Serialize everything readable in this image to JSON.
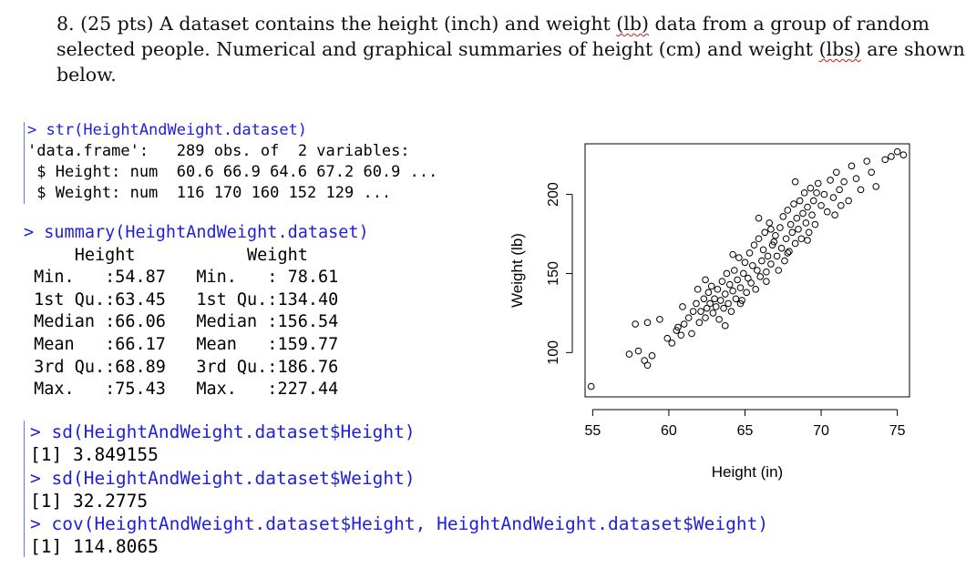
{
  "question": {
    "line1": "8.  (25 pts) A dataset contains the height (inch) and weight ",
    "line1_w1": "(lb)",
    "line1_tail": " data from a group of random",
    "line2": "selected people. Numerical and graphical summaries of height (cm) and weight ",
    "line2_w": "(lbs)",
    "line2_tail": " are shown",
    "line3": "below."
  },
  "console1": {
    "cmd": "> str(HeightAndWeight.dataset)",
    "line1": "'data.frame':\t289 obs. of  2 variables:",
    "line2": " $ Height: num  60.6 66.9 64.6 67.2 60.9 ...",
    "line3": " $ Weight: num  116 170 160 152 129 ..."
  },
  "console2": {
    "cmd": "> summary(HeightAndWeight.dataset)",
    "rows": [
      "     Height           Weight     ",
      " Min.   :54.87   Min.   : 78.61  ",
      " 1st Qu.:63.45   1st Qu.:134.40  ",
      " Median :66.06   Median :156.54  ",
      " Mean   :66.17   Mean   :159.77  ",
      " 3rd Qu.:68.89   3rd Qu.:186.76  ",
      " Max.   :75.43   Max.   :227.44  "
    ]
  },
  "console3": {
    "cmd1": "> sd(HeightAndWeight.dataset$Height)",
    "out1": "[1] 3.849155",
    "cmd2": "> sd(HeightAndWeight.dataset$Weight)",
    "out2": "[1] 32.2775",
    "cmd3": "> cov(HeightAndWeight.dataset$Height, HeightAndWeight.dataset$Weight)",
    "out3": "[1] 114.8065"
  },
  "chart_data": {
    "type": "scatter",
    "xlabel": "Height (in)",
    "ylabel": "Weight (lb)",
    "xlim": [
      54.5,
      75.8
    ],
    "ylim": [
      72,
      232
    ],
    "xticks": [
      "55",
      "60",
      "65",
      "70",
      "75"
    ],
    "yticks": [
      "100",
      "150",
      "200"
    ],
    "grid": false,
    "points": [
      [
        54.9,
        78.6
      ],
      [
        57.4,
        99
      ],
      [
        58.0,
        101
      ],
      [
        58.4,
        95
      ],
      [
        58.6,
        92
      ],
      [
        58.9,
        98
      ],
      [
        57.8,
        118
      ],
      [
        58.6,
        119
      ],
      [
        59.4,
        121
      ],
      [
        59.9,
        109
      ],
      [
        60.2,
        106
      ],
      [
        60.5,
        114
      ],
      [
        60.8,
        111
      ],
      [
        61.0,
        118
      ],
      [
        61.3,
        122
      ],
      [
        60.6,
        116
      ],
      [
        60.9,
        129
      ],
      [
        61.5,
        112
      ],
      [
        61.6,
        126
      ],
      [
        61.8,
        131
      ],
      [
        62.0,
        119
      ],
      [
        62.1,
        126
      ],
      [
        62.3,
        134
      ],
      [
        62.4,
        122
      ],
      [
        62.5,
        128
      ],
      [
        62.6,
        138
      ],
      [
        62.7,
        131
      ],
      [
        62.8,
        142
      ],
      [
        62.9,
        125
      ],
      [
        63.0,
        134
      ],
      [
        63.1,
        129
      ],
      [
        63.2,
        140
      ],
      [
        63.3,
        121
      ],
      [
        63.4,
        133
      ],
      [
        63.5,
        145
      ],
      [
        63.6,
        128
      ],
      [
        63.7,
        137
      ],
      [
        63.8,
        150
      ],
      [
        63.9,
        131
      ],
      [
        64.0,
        143
      ],
      [
        64.1,
        126
      ],
      [
        64.2,
        139
      ],
      [
        64.3,
        152
      ],
      [
        64.4,
        134
      ],
      [
        64.5,
        146
      ],
      [
        64.6,
        160
      ],
      [
        64.7,
        141
      ],
      [
        64.8,
        133
      ],
      [
        64.9,
        150
      ],
      [
        65.0,
        157
      ],
      [
        65.1,
        138
      ],
      [
        65.2,
        147
      ],
      [
        65.3,
        163
      ],
      [
        65.4,
        144
      ],
      [
        65.5,
        155
      ],
      [
        65.6,
        168
      ],
      [
        65.7,
        140
      ],
      [
        65.8,
        152
      ],
      [
        65.9,
        172
      ],
      [
        66.0,
        148
      ],
      [
        66.1,
        158
      ],
      [
        66.2,
        165
      ],
      [
        66.3,
        176
      ],
      [
        66.4,
        151
      ],
      [
        66.5,
        161
      ],
      [
        66.6,
        182
      ],
      [
        66.7,
        156
      ],
      [
        66.8,
        168
      ],
      [
        66.9,
        170
      ],
      [
        67.0,
        174
      ],
      [
        67.1,
        161
      ],
      [
        67.2,
        152
      ],
      [
        67.3,
        179
      ],
      [
        67.4,
        166
      ],
      [
        67.5,
        186
      ],
      [
        67.6,
        158
      ],
      [
        67.7,
        172
      ],
      [
        67.8,
        190
      ],
      [
        67.9,
        164
      ],
      [
        68.0,
        181
      ],
      [
        68.1,
        176
      ],
      [
        68.2,
        194
      ],
      [
        68.3,
        169
      ],
      [
        68.4,
        185
      ],
      [
        68.5,
        178
      ],
      [
        68.6,
        196
      ],
      [
        68.7,
        172
      ],
      [
        68.8,
        188
      ],
      [
        68.9,
        201
      ],
      [
        69.0,
        182
      ],
      [
        69.1,
        192
      ],
      [
        69.2,
        176
      ],
      [
        69.3,
        204
      ],
      [
        69.4,
        187
      ],
      [
        69.5,
        196
      ],
      [
        69.6,
        181
      ],
      [
        69.8,
        207
      ],
      [
        70.0,
        193
      ],
      [
        70.2,
        200
      ],
      [
        70.4,
        189
      ],
      [
        70.6,
        209
      ],
      [
        70.8,
        198
      ],
      [
        71.0,
        214
      ],
      [
        71.2,
        203
      ],
      [
        71.5,
        208
      ],
      [
        71.8,
        196
      ],
      [
        72.0,
        218
      ],
      [
        72.3,
        210
      ],
      [
        72.6,
        203
      ],
      [
        73.0,
        221
      ],
      [
        73.3,
        214
      ],
      [
        73.6,
        205
      ],
      [
        74.2,
        222
      ],
      [
        74.6,
        224
      ],
      [
        75.0,
        227
      ],
      [
        75.4,
        225
      ],
      [
        68.3,
        208
      ],
      [
        69.7,
        201
      ],
      [
        66.7,
        178
      ],
      [
        64.2,
        162
      ],
      [
        62.4,
        146
      ],
      [
        65.9,
        185
      ],
      [
        63.7,
        117
      ],
      [
        67.8,
        163
      ],
      [
        70.9,
        187
      ],
      [
        61.9,
        140
      ],
      [
        64.7,
        131
      ],
      [
        66.4,
        145
      ],
      [
        69.1,
        171
      ],
      [
        71.3,
        193
      ]
    ]
  }
}
